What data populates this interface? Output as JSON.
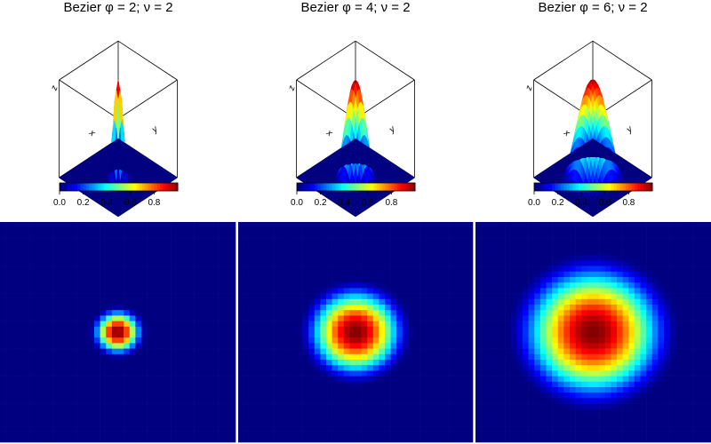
{
  "chart_data": [
    {
      "type": "surface",
      "title": "Bezier φ = 2; ν = 2",
      "phi": 2,
      "nu": 2,
      "axis_labels": {
        "x": "x",
        "y": "y",
        "z": "z"
      },
      "colorbar": {
        "ticks": [
          "0.0",
          "0.2",
          "0.4",
          "0.6",
          "0.8"
        ],
        "range": [
          0,
          1
        ]
      },
      "peak_value": 1.0
    },
    {
      "type": "surface",
      "title": "Bezier φ = 4; ν = 2",
      "phi": 4,
      "nu": 2,
      "axis_labels": {
        "x": "x",
        "y": "y",
        "z": "z"
      },
      "colorbar": {
        "ticks": [
          "0.0",
          "0.2",
          "0.4",
          "0.6",
          "0.8"
        ],
        "range": [
          0,
          1
        ]
      },
      "peak_value": 1.0
    },
    {
      "type": "surface",
      "title": "Bezier φ = 6; ν = 2",
      "phi": 6,
      "nu": 2,
      "axis_labels": {
        "x": "x",
        "y": "y",
        "z": "z"
      },
      "colorbar": {
        "ticks": [
          "0.0",
          "0.2",
          "0.4",
          "0.6",
          "0.8"
        ],
        "range": [
          0,
          1
        ]
      },
      "peak_value": 1.0
    },
    {
      "type": "heatmap",
      "phi": 2,
      "nu": 2,
      "grid": 40,
      "colormap": "jet",
      "range": [
        0,
        1
      ]
    },
    {
      "type": "heatmap",
      "phi": 4,
      "nu": 2,
      "grid": 40,
      "colormap": "jet",
      "range": [
        0,
        1
      ]
    },
    {
      "type": "heatmap",
      "phi": 6,
      "nu": 2,
      "grid": 40,
      "colormap": "jet",
      "range": [
        0,
        1
      ]
    }
  ]
}
